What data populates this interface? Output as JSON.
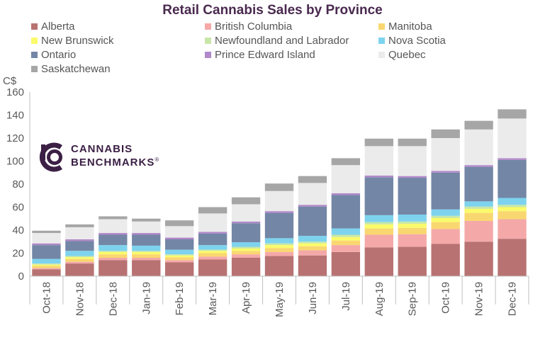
{
  "chart_data": {
    "type": "bar",
    "stacked": true,
    "title": "Retail Cannabis Sales by Province",
    "ylabel": "C$",
    "ylim": [
      0,
      160
    ],
    "yticks": [
      0,
      20,
      40,
      60,
      80,
      100,
      120,
      140,
      160
    ],
    "grid": false,
    "legend_position": "top",
    "categories": [
      "Oct-18",
      "Nov-18",
      "Dec-18",
      "Jan-19",
      "Feb-19",
      "Mar-19",
      "Apr-19",
      "May-19",
      "Jun-19",
      "Jul-19",
      "Aug-19",
      "Sep-19",
      "Oct-19",
      "Nov-19",
      "Dec-19"
    ],
    "series": [
      {
        "name": "Alberta",
        "color": "#b87272",
        "values": [
          6,
          11,
          14,
          14,
          12,
          14.5,
          16,
          17.5,
          18,
          21,
          25,
          25.5,
          28,
          30,
          32.5
        ]
      },
      {
        "name": "British Columbia",
        "color": "#f4a9a8",
        "values": [
          1,
          1.5,
          2,
          2,
          2,
          2.5,
          3,
          3.5,
          4.5,
          6,
          11,
          11,
          13,
          18,
          17
        ]
      },
      {
        "name": "Manitoba",
        "color": "#f9d770",
        "values": [
          2,
          2.5,
          3,
          3,
          2.5,
          3,
          3,
          3.5,
          3.5,
          4,
          5.5,
          5.5,
          6,
          7,
          7
        ]
      },
      {
        "name": "New Brunswick",
        "color": "#fafb6a",
        "values": [
          1,
          1.5,
          2,
          2,
          1.5,
          2,
          2,
          2.5,
          2.5,
          3,
          3.5,
          3.5,
          3.5,
          3.5,
          3.5
        ]
      },
      {
        "name": "Newfoundland and Labrador",
        "color": "#c8e6a8",
        "values": [
          1,
          1,
          1,
          1,
          1,
          1,
          1.5,
          1.5,
          1.5,
          2,
          2,
          2,
          2,
          2,
          2
        ]
      },
      {
        "name": "Nova Scotia",
        "color": "#7dd3ee",
        "values": [
          4,
          4.5,
          5,
          4.5,
          4,
          4,
          4,
          4.5,
          5,
          5.5,
          6,
          6,
          5.5,
          4.5,
          6
        ]
      },
      {
        "name": "Ontario",
        "color": "#7386a6",
        "values": [
          12,
          8.5,
          9,
          9.5,
          9,
          10,
          16.5,
          22,
          25.5,
          29,
          33,
          32,
          32,
          30,
          33
        ]
      },
      {
        "name": "Prince Edward Island",
        "color": "#b188c9",
        "values": [
          1.5,
          1.5,
          1.5,
          1.5,
          1.5,
          1.5,
          1.5,
          1.5,
          1.5,
          1.5,
          1.5,
          1.5,
          1.5,
          1.5,
          1.5
        ]
      },
      {
        "name": "Quebec",
        "color": "#ebebeb",
        "values": [
          9,
          10.5,
          12,
          10,
          10,
          16,
          15,
          17.5,
          19,
          24.5,
          25.5,
          26,
          28.5,
          31,
          34.5
        ]
      },
      {
        "name": "Saskatchewan",
        "color": "#a6a6a6",
        "values": [
          2,
          2.5,
          2.5,
          2.5,
          5,
          5.5,
          6,
          6.5,
          6,
          6,
          6.5,
          6.5,
          7.5,
          7.5,
          8
        ]
      }
    ]
  },
  "watermark": {
    "line1": "CANNABIS",
    "line2": "BENCHMARKS",
    "mark": "®",
    "color": "#3b1f44",
    "icon": "cannabis-benchmarks-logo-icon"
  }
}
